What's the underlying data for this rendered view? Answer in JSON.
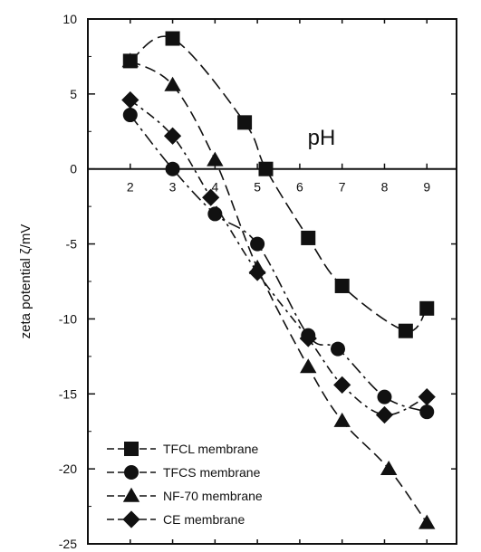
{
  "chart_data": {
    "type": "line",
    "xlabel": "pH",
    "ylabel": "zeta potential ζ/mV",
    "xlim": [
      1,
      9.7
    ],
    "ylim": [
      -25,
      10
    ],
    "x_ticks": [
      2,
      3,
      4,
      5,
      6,
      7,
      8,
      9
    ],
    "y_ticks": [
      10,
      5,
      0,
      -5,
      -10,
      -15,
      -20,
      -25
    ],
    "grid": false,
    "legend_position": "bottom-left",
    "series": [
      {
        "name": "TFCL membrane",
        "marker": "square",
        "x": [
          2.0,
          3.0,
          4.7,
          5.2,
          6.2,
          7.0,
          8.5,
          9.0
        ],
        "y": [
          7.2,
          8.7,
          3.1,
          0.0,
          -4.6,
          -7.8,
          -10.8,
          -9.3
        ]
      },
      {
        "name": "TFCS membrane",
        "marker": "circle",
        "x": [
          2.0,
          3.0,
          4.0,
          5.0,
          6.2,
          6.9,
          8.0,
          9.0
        ],
        "y": [
          3.6,
          0.0,
          -3.0,
          -5.0,
          -11.1,
          -12.0,
          -15.2,
          -16.2
        ]
      },
      {
        "name": "NF-70 membrane",
        "marker": "triangle",
        "x": [
          2.0,
          3.0,
          4.0,
          5.0,
          6.2,
          7.0,
          8.1,
          9.0
        ],
        "y": [
          7.2,
          5.6,
          0.6,
          -6.6,
          -13.2,
          -16.8,
          -20.0,
          -23.6
        ]
      },
      {
        "name": "CE membrane",
        "marker": "diamond",
        "x": [
          2.0,
          3.0,
          3.9,
          5.0,
          6.2,
          7.0,
          8.0,
          9.0
        ],
        "y": [
          4.6,
          2.2,
          -1.9,
          -6.9,
          -11.3,
          -14.4,
          -16.4,
          -15.2
        ]
      }
    ]
  }
}
